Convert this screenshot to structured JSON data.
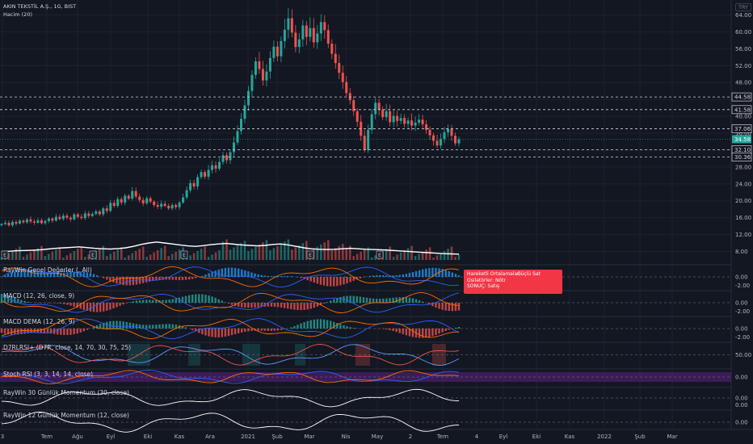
{
  "header": {
    "symbol": "AKIN TEKSTİL A.Ş., 1G, BIST",
    "volume_label": "Hacim (20)",
    "currency": "TRY"
  },
  "colors": {
    "background": "#131722",
    "up": "#26a69a",
    "down": "#ef5350",
    "grid": "#1e222d",
    "dashed": "#d1d4dc",
    "price_label": "#26a69a",
    "info_box": "#f23645",
    "stoch_band": "#4a1f6b"
  },
  "chart_data": {
    "type": "candlestick",
    "y_ticks": [
      "64.00",
      "60.00",
      "56.00",
      "52.00",
      "48.00",
      "44.00",
      "40.00",
      "36.00",
      "32.00",
      "28.00",
      "24.00",
      "20.00",
      "16.00",
      "12.00",
      "8.00"
    ],
    "x_ticks": [
      "3",
      "Tem",
      "Ağu",
      "Eyl",
      "Eki",
      "Kas",
      "Ara",
      "2021",
      "Şub",
      "Mar",
      "Nis",
      "May",
      "2",
      "Tem",
      "4",
      "Eyl",
      "Eki",
      "Kas",
      "2022",
      "Şub",
      "Mar"
    ],
    "ylim": [
      6,
      66
    ],
    "price_levels": [
      {
        "label": "44.58",
        "value": 44.58
      },
      {
        "label": "41.58",
        "value": 41.58
      },
      {
        "label": "37.06",
        "value": 37.06
      },
      {
        "label": "32.10",
        "value": 32.1
      },
      {
        "label": "30.36",
        "value": 30.36
      }
    ],
    "last_price": {
      "label": "34.58",
      "value": 34.58
    },
    "close_series": [
      14.5,
      14.8,
      14.2,
      15.0,
      14.6,
      15.3,
      14.9,
      15.6,
      15.1,
      14.8,
      15.4,
      14.7,
      15.2,
      15.8,
      15.3,
      16.2,
      15.7,
      16.5,
      16.0,
      15.6,
      16.8,
      16.2,
      15.9,
      17.0,
      16.4,
      16.9,
      17.5,
      16.8,
      18.2,
      17.6,
      19.5,
      18.8,
      20.4,
      19.6,
      21.2,
      20.5,
      22.3,
      21.0,
      20.2,
      19.4,
      20.6,
      19.8,
      19.0,
      18.6,
      19.3,
      18.8,
      18.2,
      19.0,
      18.5,
      19.6,
      20.8,
      22.5,
      24.2,
      23.4,
      25.6,
      26.8,
      25.7,
      27.3,
      28.4,
      27.6,
      29.2,
      30.8,
      29.6,
      31.5,
      33.8,
      36.5,
      39.4,
      42.6,
      46.0,
      49.8,
      53.0,
      51.2,
      48.5,
      50.6,
      53.8,
      56.5,
      54.2,
      57.8,
      60.5,
      63.2,
      59.8,
      56.4,
      58.2,
      61.5,
      58.8,
      60.9,
      57.5,
      59.6,
      62.3,
      60.4,
      57.2,
      54.8,
      52.6,
      50.3,
      48.1,
      45.5,
      43.8,
      41.2,
      38.7,
      35.4,
      32.0,
      36.8,
      40.5,
      43.2,
      41.6,
      39.8,
      41.2,
      38.6,
      40.1,
      38.9,
      39.6,
      38.2,
      39.0,
      37.8,
      38.5,
      39.2,
      38.1,
      36.8,
      35.5,
      34.2,
      33.1,
      34.6,
      36.2,
      37.0,
      35.4,
      33.6,
      34.58
    ],
    "volume_ma": [
      3.5,
      3.6,
      3.8,
      3.9,
      4.0,
      4.2,
      4.5,
      4.8,
      5.0,
      5.2,
      5.4,
      5.1,
      4.8,
      4.6,
      4.5,
      4.7,
      5.0,
      5.6,
      6.4,
      7.0,
      7.4,
      7.0,
      6.6,
      6.2,
      5.8,
      5.6,
      5.9,
      6.3,
      6.6,
      6.8,
      6.5,
      6.2,
      6.0,
      5.8,
      6.0,
      6.4,
      6.6,
      6.2,
      5.6,
      5.0,
      4.6,
      4.4,
      4.3,
      4.4,
      4.6,
      4.8,
      4.6,
      4.4,
      4.3,
      4.2,
      4.0,
      3.8,
      3.6,
      3.4,
      3.2,
      3.0,
      2.8,
      2.6,
      2.5,
      2.4
    ]
  },
  "earnings_markers": [
    "E",
    "E",
    "E",
    "E",
    "E"
  ],
  "info_box": {
    "rows": [
      {
        "key": "Hareketli Ortalamalar:",
        "val": "Güçlü Sat"
      },
      {
        "key": "Osilatörler: Nötr",
        "val": ""
      },
      {
        "key": "SONUÇ:  Satış",
        "val": ""
      }
    ]
  },
  "indicators": [
    {
      "name": "RayWin Genel Değerler (, All)",
      "ticks": [
        "0.00",
        "-2.00"
      ]
    },
    {
      "name": "MACD (12, 26, close, 9)",
      "ticks": [
        "0.00",
        "-2.00"
      ]
    },
    {
      "name": "MACD DEMA (12, 26, 9)",
      "ticks": [
        "0.00",
        "-2.00"
      ]
    },
    {
      "name": "D7RLRSI+ (D7R, close, 14, 70, 30, 75, 25)",
      "ticks": [
        "50.00"
      ]
    },
    {
      "name": "Stoch RSI (3, 3, 14, 14, close)",
      "ticks": [
        "0.00"
      ]
    },
    {
      "name": "RayWin 30 Günlük Momentum (30, close)",
      "ticks": [
        "0.00",
        "0.00"
      ]
    },
    {
      "name": "RayWin 12 Günlük Momentum (12, close)",
      "ticks": [
        "0.00"
      ]
    }
  ]
}
